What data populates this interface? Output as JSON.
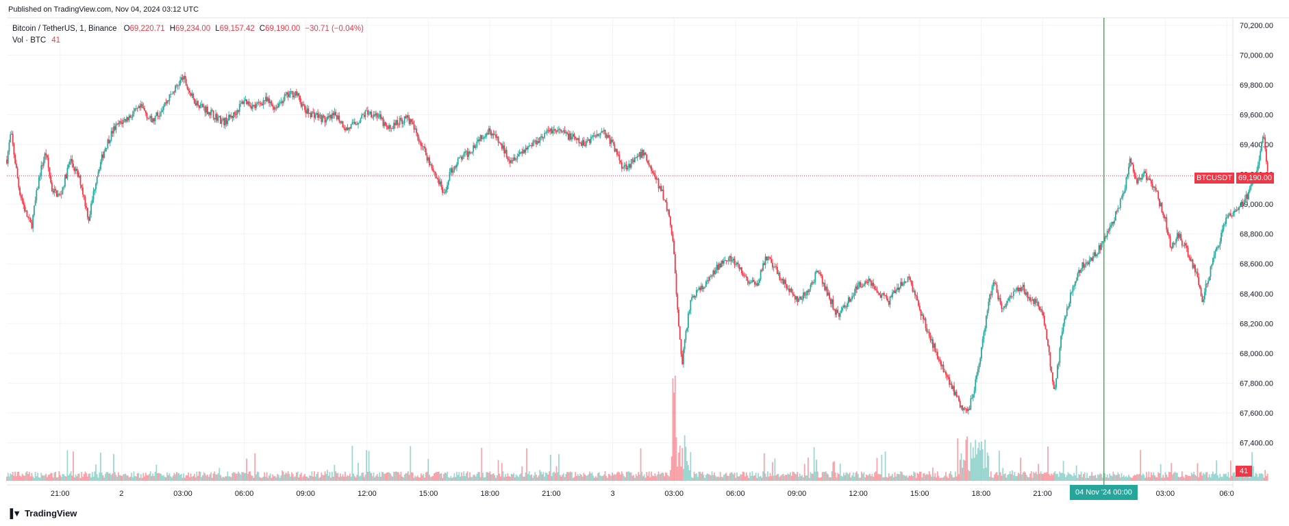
{
  "header": {
    "published": "Published on TradingView.com, Nov 04, 2024 03:12 UTC"
  },
  "legend": {
    "symbol": "Bitcoin / TetherUS, 1, Binance",
    "o_label": "O",
    "o_value": "69,220.71",
    "h_label": "H",
    "h_value": "69,234.00",
    "l_label": "L",
    "l_value": "69,157.42",
    "c_label": "C",
    "c_value": "69,190.00",
    "change": "−30.71 (−0.04%)",
    "volume_label": "Vol · BTC",
    "volume_value": "41"
  },
  "price_scale": {
    "symbol_tag": "BTCUSDT",
    "last_price": "69,190.00",
    "volume_tag": "41"
  },
  "crosshair": {
    "date_label": "04 Nov '24   00:00"
  },
  "footer": {
    "brand": "TradingView"
  },
  "colors": {
    "up": "#26a69a",
    "down": "#f23645",
    "crosshair": "#4caf50",
    "grid": "#f0f3fa"
  },
  "chart_data": {
    "type": "candlestick",
    "title": "Bitcoin / TetherUS, 1, Binance",
    "ylim": [
      67200,
      70250
    ],
    "y_ticks": [
      67400,
      67600,
      67800,
      68000,
      68200,
      68400,
      68600,
      68800,
      69000,
      69200,
      69400,
      69600,
      69800,
      70000,
      70200
    ],
    "y_tick_labels": [
      "67,400.00",
      "67,600.00",
      "67,800.00",
      "68,000.00",
      "68,200.00",
      "68,400.00",
      "68,600.00",
      "68,800.00",
      "69,000.00",
      "69,200.00",
      "69,400.00",
      "69,600.00",
      "69,800.00",
      "70,000.00",
      "70,200.00"
    ],
    "x_ticks": [
      21,
      24,
      27,
      30,
      33,
      36,
      39,
      42,
      45,
      48,
      51,
      54,
      57,
      60,
      63,
      66,
      69,
      72,
      75,
      78
    ],
    "x_tick_labels": [
      "21:00",
      "2",
      "03:00",
      "06:00",
      "09:00",
      "12:00",
      "15:00",
      "18:00",
      "21:00",
      "3",
      "03:00",
      "06:00",
      "09:00",
      "12:00",
      "15:00",
      "18:00",
      "21:00",
      "00:00",
      "03:00",
      "06:0"
    ],
    "x_range_hours": [
      18.4,
      78.3
    ],
    "last_price": 69190,
    "crosshair_hour": 72,
    "price_path": [
      [
        18.4,
        69300
      ],
      [
        18.6,
        69480
      ],
      [
        19.0,
        69100
      ],
      [
        19.3,
        68950
      ],
      [
        19.6,
        68850
      ],
      [
        20.0,
        69200
      ],
      [
        20.3,
        69350
      ],
      [
        20.6,
        69100
      ],
      [
        21.0,
        69050
      ],
      [
        21.5,
        69300
      ],
      [
        22.0,
        69150
      ],
      [
        22.4,
        68900
      ],
      [
        22.8,
        69200
      ],
      [
        23.2,
        69380
      ],
      [
        23.6,
        69500
      ],
      [
        24.0,
        69550
      ],
      [
        24.5,
        69600
      ],
      [
        25.0,
        69650
      ],
      [
        25.5,
        69550
      ],
      [
        26.0,
        69650
      ],
      [
        26.5,
        69750
      ],
      [
        27.0,
        69850
      ],
      [
        27.5,
        69700
      ],
      [
        28.0,
        69650
      ],
      [
        28.5,
        69600
      ],
      [
        29.0,
        69550
      ],
      [
        29.5,
        69600
      ],
      [
        30.0,
        69700
      ],
      [
        30.5,
        69650
      ],
      [
        31.0,
        69700
      ],
      [
        31.5,
        69650
      ],
      [
        32.0,
        69720
      ],
      [
        32.5,
        69750
      ],
      [
        33.0,
        69620
      ],
      [
        33.5,
        69600
      ],
      [
        34.0,
        69560
      ],
      [
        34.5,
        69600
      ],
      [
        35.0,
        69500
      ],
      [
        35.5,
        69550
      ],
      [
        36.0,
        69620
      ],
      [
        36.5,
        69600
      ],
      [
        37.0,
        69500
      ],
      [
        37.5,
        69550
      ],
      [
        38.0,
        69580
      ],
      [
        38.5,
        69450
      ],
      [
        39.0,
        69300
      ],
      [
        39.5,
        69150
      ],
      [
        39.8,
        69050
      ],
      [
        40.0,
        69200
      ],
      [
        40.5,
        69300
      ],
      [
        41.0,
        69350
      ],
      [
        41.5,
        69450
      ],
      [
        42.0,
        69500
      ],
      [
        42.5,
        69400
      ],
      [
        43.0,
        69300
      ],
      [
        43.5,
        69350
      ],
      [
        44.0,
        69400
      ],
      [
        44.5,
        69450
      ],
      [
        45.0,
        69500
      ],
      [
        45.5,
        69480
      ],
      [
        46.0,
        69450
      ],
      [
        46.5,
        69400
      ],
      [
        47.0,
        69450
      ],
      [
        47.5,
        69500
      ],
      [
        48.0,
        69400
      ],
      [
        48.5,
        69250
      ],
      [
        49.0,
        69280
      ],
      [
        49.5,
        69350
      ],
      [
        50.0,
        69200
      ],
      [
        50.5,
        69050
      ],
      [
        50.8,
        68900
      ],
      [
        51.0,
        68650
      ],
      [
        51.2,
        68200
      ],
      [
        51.4,
        67950
      ],
      [
        51.6,
        68150
      ],
      [
        51.8,
        68350
      ],
      [
        52.0,
        68400
      ],
      [
        52.5,
        68450
      ],
      [
        53.0,
        68550
      ],
      [
        53.5,
        68650
      ],
      [
        54.0,
        68600
      ],
      [
        54.5,
        68500
      ],
      [
        55.0,
        68450
      ],
      [
        55.5,
        68650
      ],
      [
        56.0,
        68550
      ],
      [
        56.5,
        68450
      ],
      [
        57.0,
        68350
      ],
      [
        57.5,
        68400
      ],
      [
        58.0,
        68550
      ],
      [
        58.5,
        68400
      ],
      [
        59.0,
        68250
      ],
      [
        59.5,
        68350
      ],
      [
        60.0,
        68450
      ],
      [
        60.5,
        68500
      ],
      [
        61.0,
        68400
      ],
      [
        61.5,
        68350
      ],
      [
        62.0,
        68450
      ],
      [
        62.5,
        68500
      ],
      [
        63.0,
        68300
      ],
      [
        63.5,
        68100
      ],
      [
        64.0,
        67950
      ],
      [
        64.5,
        67800
      ],
      [
        65.0,
        67650
      ],
      [
        65.4,
        67620
      ],
      [
        65.8,
        67850
      ],
      [
        66.2,
        68200
      ],
      [
        66.6,
        68500
      ],
      [
        67.0,
        68300
      ],
      [
        67.5,
        68400
      ],
      [
        68.0,
        68450
      ],
      [
        68.5,
        68350
      ],
      [
        69.0,
        68300
      ],
      [
        69.3,
        68000
      ],
      [
        69.6,
        67750
      ],
      [
        70.0,
        68200
      ],
      [
        70.5,
        68450
      ],
      [
        71.0,
        68600
      ],
      [
        71.5,
        68650
      ],
      [
        72.0,
        68750
      ],
      [
        72.5,
        68900
      ],
      [
        73.0,
        69100
      ],
      [
        73.3,
        69300
      ],
      [
        73.6,
        69150
      ],
      [
        74.0,
        69200
      ],
      [
        74.5,
        69100
      ],
      [
        75.0,
        68900
      ],
      [
        75.3,
        68700
      ],
      [
        75.6,
        68800
      ],
      [
        76.0,
        68700
      ],
      [
        76.5,
        68550
      ],
      [
        76.8,
        68350
      ],
      [
        77.0,
        68450
      ],
      [
        77.5,
        68700
      ],
      [
        78.0,
        68900
      ],
      [
        78.5,
        68950
      ],
      [
        79.0,
        69050
      ],
      [
        79.5,
        69250
      ],
      [
        79.8,
        69480
      ],
      [
        80.0,
        69190
      ]
    ]
  }
}
